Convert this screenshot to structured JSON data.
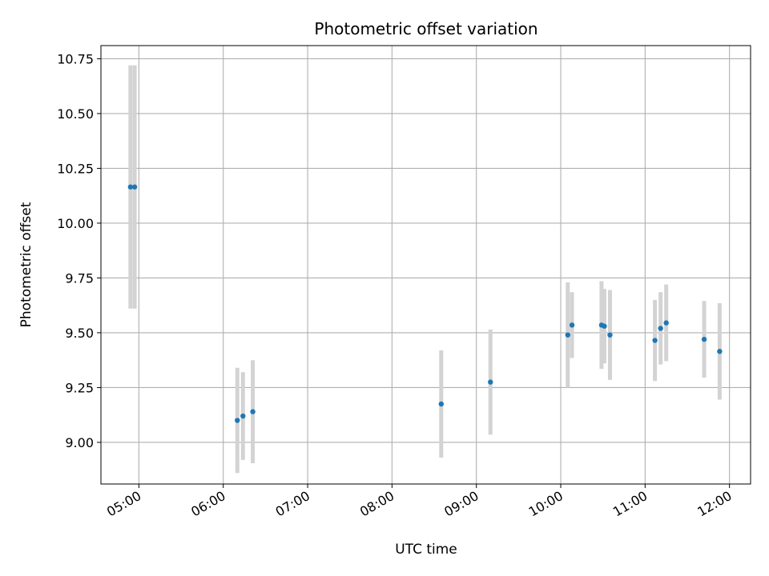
{
  "chart_data": {
    "type": "scatter",
    "title": "Photometric offset variation",
    "xlabel": "UTC time",
    "ylabel": "Photometric offset",
    "x_unit": "hours UTC",
    "xlim": [
      "04:33",
      "12:15"
    ],
    "ylim": [
      8.81,
      10.81
    ],
    "xticks": [
      "05:00",
      "06:00",
      "07:00",
      "08:00",
      "09:00",
      "10:00",
      "11:00",
      "12:00"
    ],
    "yticks": [
      "9.00",
      "9.25",
      "9.50",
      "9.75",
      "10.00",
      "10.25",
      "10.50",
      "10.75"
    ],
    "grid": true,
    "marker_color": "#1f77b4",
    "errorbar_color": "#d3d3d3",
    "points": [
      {
        "time": "04:54",
        "y": 10.165,
        "err": 0.555
      },
      {
        "time": "04:57",
        "y": 10.165,
        "err": 0.555
      },
      {
        "time": "06:10",
        "y": 9.1,
        "err": 0.24
      },
      {
        "time": "06:14",
        "y": 9.12,
        "err": 0.2
      },
      {
        "time": "06:21",
        "y": 9.14,
        "err": 0.235
      },
      {
        "time": "08:35",
        "y": 9.175,
        "err": 0.245
      },
      {
        "time": "09:10",
        "y": 9.275,
        "err": 0.24
      },
      {
        "time": "10:05",
        "y": 9.49,
        "err": 0.24
      },
      {
        "time": "10:08",
        "y": 9.535,
        "err": 0.15
      },
      {
        "time": "10:29",
        "y": 9.535,
        "err": 0.2
      },
      {
        "time": "10:31",
        "y": 9.53,
        "err": 0.17
      },
      {
        "time": "10:35",
        "y": 9.49,
        "err": 0.205
      },
      {
        "time": "11:07",
        "y": 9.465,
        "err": 0.185
      },
      {
        "time": "11:11",
        "y": 9.52,
        "err": 0.165
      },
      {
        "time": "11:15",
        "y": 9.545,
        "err": 0.175
      },
      {
        "time": "11:42",
        "y": 9.47,
        "err": 0.175
      },
      {
        "time": "11:53",
        "y": 9.415,
        "err": 0.22
      }
    ]
  }
}
